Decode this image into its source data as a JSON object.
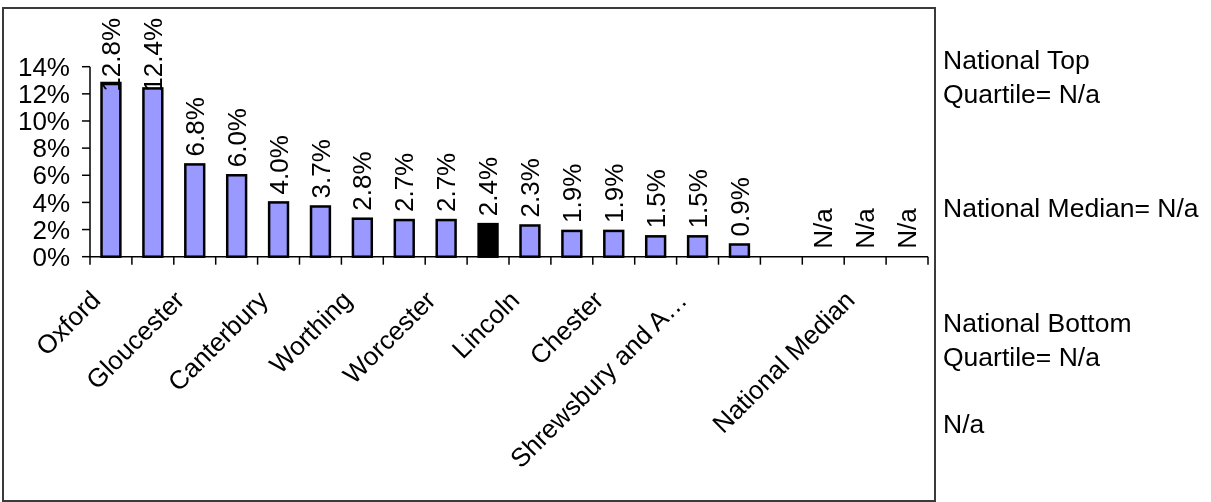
{
  "chart_data": {
    "type": "bar",
    "categories": [
      "Oxford",
      null,
      "Gloucester",
      null,
      "Canterbury",
      null,
      "Worthing",
      null,
      "Worcester",
      null,
      "Lincoln",
      null,
      "Chester",
      null,
      "Shrewsbury and A…",
      null,
      null,
      null,
      "National Median",
      null
    ],
    "values": [
      12.8,
      12.4,
      6.8,
      6.0,
      4.0,
      3.7,
      2.8,
      2.7,
      2.7,
      2.4,
      2.3,
      1.9,
      1.9,
      1.5,
      1.5,
      0.9,
      null,
      null,
      null,
      null
    ],
    "colors": [
      "#9999ff",
      "#9999ff",
      "#9999ff",
      "#9999ff",
      "#9999ff",
      "#9999ff",
      "#9999ff",
      "#9999ff",
      "#9999ff",
      "#000000",
      "#9999ff",
      "#9999ff",
      "#9999ff",
      "#9999ff",
      "#9999ff",
      "#9999ff",
      null,
      null,
      null,
      null
    ],
    "value_labels": [
      "12.8%",
      "12.4%",
      "6.8%",
      "6.0%",
      "4.0%",
      "3.7%",
      "2.8%",
      "2.7%",
      "2.7%",
      "2.4%",
      "2.3%",
      "1.9%",
      "1.9%",
      "1.5%",
      "1.5%",
      "0.9%",
      null,
      "N/a",
      "N/a",
      "N/a"
    ],
    "ylim": [
      0,
      14
    ],
    "yticks": [
      {
        "value": 0,
        "label": "0%"
      },
      {
        "value": 2,
        "label": "2%"
      },
      {
        "value": 4,
        "label": "4%"
      },
      {
        "value": 6,
        "label": "6%"
      },
      {
        "value": 8,
        "label": "8%"
      },
      {
        "value": 10,
        "label": "10%"
      },
      {
        "value": 12,
        "label": "12%"
      },
      {
        "value": 14,
        "label": "14%"
      }
    ],
    "annotations": [
      "National Top\nQuartile= N/a",
      "National Median= N/a",
      "National Bottom\nQuartile= N/a",
      "N/a"
    ]
  }
}
